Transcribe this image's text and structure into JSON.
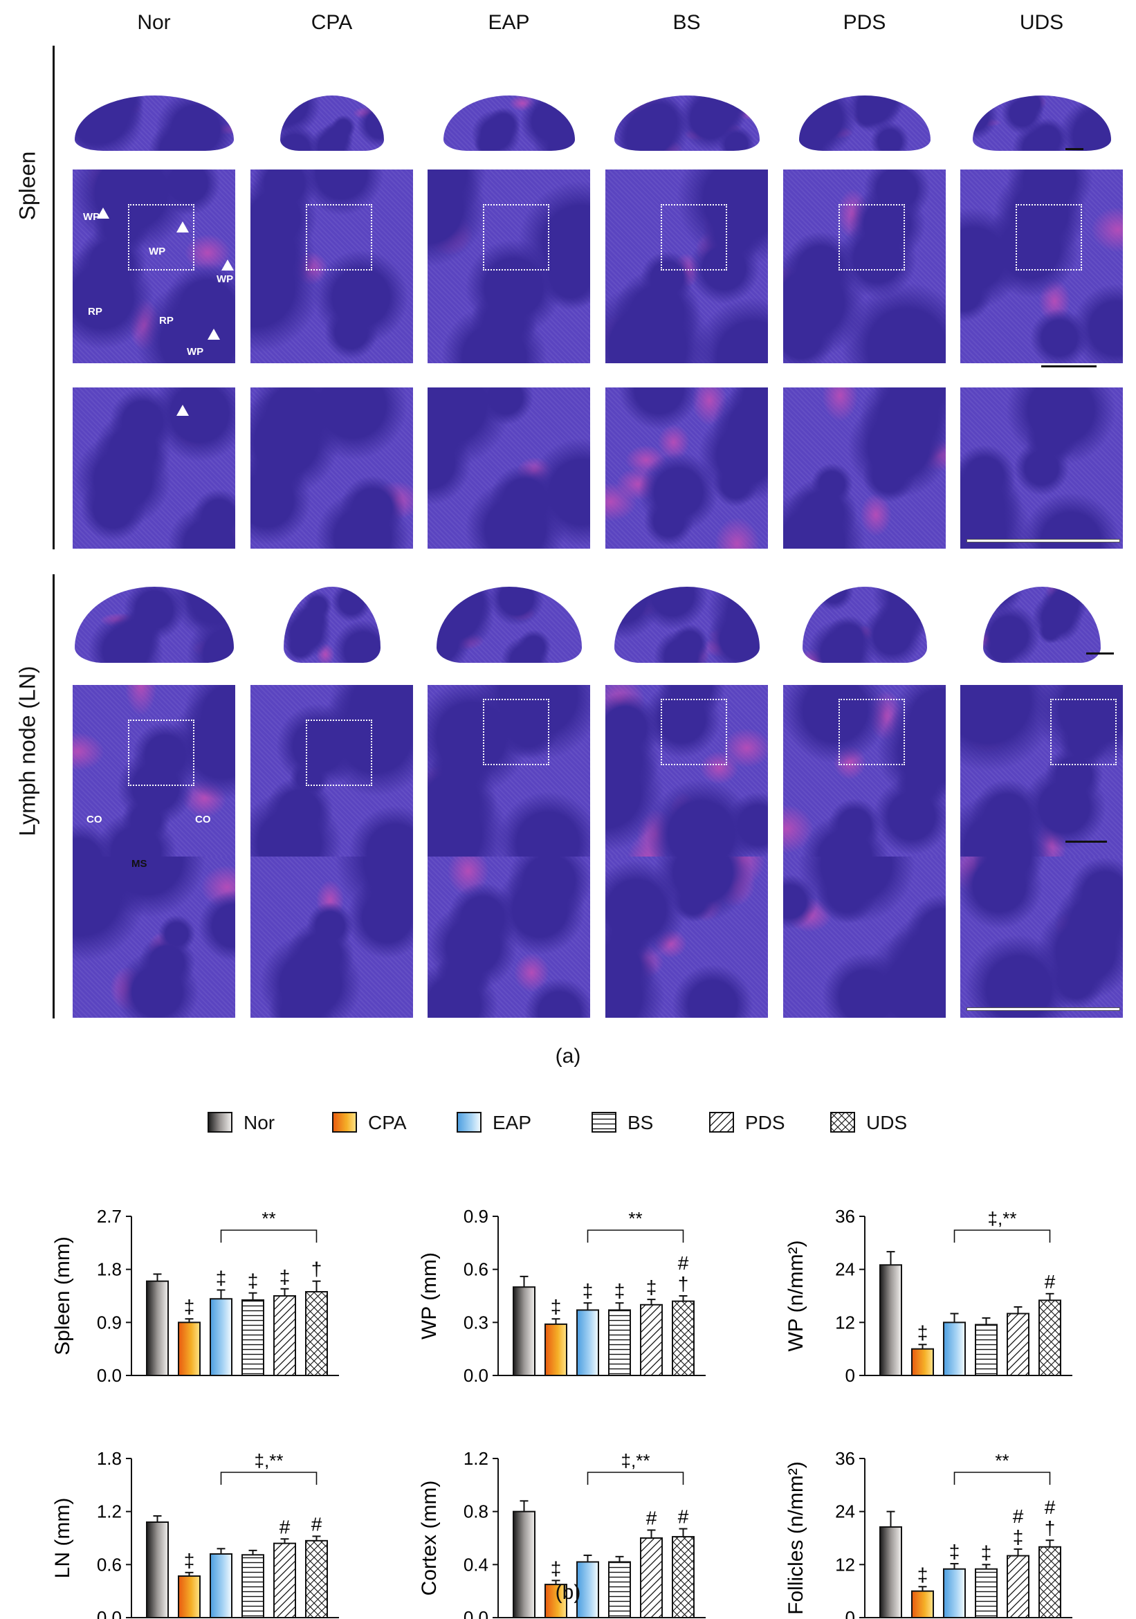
{
  "groups": [
    "Nor",
    "CPA",
    "EAP",
    "BS",
    "PDS",
    "UDS"
  ],
  "row_labels": {
    "spleen": "Spleen",
    "lymph": "Lymph node (LN)"
  },
  "annotations": {
    "wp": "WP",
    "rp": "RP",
    "co": "CO",
    "ms": "MS"
  },
  "panel_labels": {
    "a": "(a)",
    "b": "(b)"
  },
  "colors": {
    "tissue_dark": "#3a2a9a",
    "tissue_mid": "#5a44c0",
    "tissue_pink": "#b24db8",
    "nor_bar": "#6e6a68",
    "cpa_bar": "#f0a020",
    "eap_bar": "#8fc3ea"
  },
  "legend": [
    {
      "name": "Nor",
      "pattern": "nor"
    },
    {
      "name": "CPA",
      "pattern": "cpa"
    },
    {
      "name": "EAP",
      "pattern": "eap"
    },
    {
      "name": "BS",
      "pattern": "hlines"
    },
    {
      "name": "PDS",
      "pattern": "diag"
    },
    {
      "name": "UDS",
      "pattern": "cross"
    }
  ],
  "chart_data": [
    {
      "type": "bar",
      "ylabel": "Spleen (mm)",
      "ylim": [
        0,
        2.7
      ],
      "yticks": [
        "0.0",
        "0.9",
        "1.8",
        "2.7"
      ],
      "categories": [
        "Nor",
        "CPA",
        "EAP",
        "BS",
        "PDS",
        "UDS"
      ],
      "values": [
        1.6,
        0.9,
        1.3,
        1.28,
        1.35,
        1.42
      ],
      "errors": [
        0.12,
        0.06,
        0.15,
        0.12,
        0.12,
        0.18
      ],
      "marks": [
        "",
        "‡",
        "‡",
        "‡",
        "‡",
        "†"
      ],
      "bracket": {
        "from": 2,
        "to": 5,
        "label": "**"
      }
    },
    {
      "type": "bar",
      "ylabel": "WP (mm)",
      "ylim": [
        0,
        0.9
      ],
      "yticks": [
        "0.0",
        "0.3",
        "0.6",
        "0.9"
      ],
      "categories": [
        "Nor",
        "CPA",
        "EAP",
        "BS",
        "PDS",
        "UDS"
      ],
      "values": [
        0.5,
        0.29,
        0.37,
        0.37,
        0.4,
        0.42
      ],
      "errors": [
        0.06,
        0.03,
        0.04,
        0.04,
        0.03,
        0.03
      ],
      "marks": [
        "",
        "‡",
        "‡",
        "‡",
        "‡",
        "#\n†"
      ],
      "bracket": {
        "from": 2,
        "to": 5,
        "label": "**"
      }
    },
    {
      "type": "bar",
      "ylabel": "WP (n/mm²)",
      "ylim": [
        0,
        36
      ],
      "yticks": [
        "0",
        "12",
        "24",
        "36"
      ],
      "categories": [
        "Nor",
        "CPA",
        "EAP",
        "BS",
        "PDS",
        "UDS"
      ],
      "values": [
        25,
        6,
        12,
        11.5,
        14,
        17
      ],
      "errors": [
        3,
        1,
        2,
        1.5,
        1.5,
        1.5
      ],
      "marks": [
        "",
        "‡",
        "",
        "",
        "",
        "#"
      ],
      "bracket": {
        "from": 2,
        "to": 5,
        "label": "‡,**"
      }
    },
    {
      "type": "bar",
      "ylabel": "LN (mm)",
      "ylim": [
        0,
        1.8
      ],
      "yticks": [
        "0.0",
        "0.6",
        "1.2",
        "1.8"
      ],
      "categories": [
        "Nor",
        "CPA",
        "EAP",
        "BS",
        "PDS",
        "UDS"
      ],
      "values": [
        1.08,
        0.47,
        0.72,
        0.71,
        0.84,
        0.87
      ],
      "errors": [
        0.07,
        0.04,
        0.06,
        0.05,
        0.05,
        0.05
      ],
      "marks": [
        "",
        "‡",
        "",
        "",
        "#",
        "#"
      ],
      "bracket": {
        "from": 2,
        "to": 5,
        "label": "‡,**"
      }
    },
    {
      "type": "bar",
      "ylabel": "Cortex (mm)",
      "ylim": [
        0,
        1.2
      ],
      "yticks": [
        "0.0",
        "0.4",
        "0.8",
        "1.2"
      ],
      "categories": [
        "Nor",
        "CPA",
        "EAP",
        "BS",
        "PDS",
        "UDS"
      ],
      "values": [
        0.8,
        0.25,
        0.42,
        0.42,
        0.6,
        0.61
      ],
      "errors": [
        0.08,
        0.03,
        0.05,
        0.04,
        0.06,
        0.06
      ],
      "marks": [
        "",
        "‡",
        "",
        "",
        "#",
        "#"
      ],
      "bracket": {
        "from": 2,
        "to": 5,
        "label": "‡,**"
      }
    },
    {
      "type": "bar",
      "ylabel": "Follicles (n/mm²)",
      "ylim": [
        0,
        36
      ],
      "yticks": [
        "0",
        "12",
        "24",
        "36"
      ],
      "categories": [
        "Nor",
        "CPA",
        "EAP",
        "BS",
        "PDS",
        "UDS"
      ],
      "values": [
        20.5,
        6,
        11,
        11,
        14,
        16
      ],
      "errors": [
        3.5,
        1,
        1.2,
        1,
        1.5,
        1.5
      ],
      "marks": [
        "",
        "‡",
        "‡",
        "‡",
        "#\n‡",
        "#\n†"
      ],
      "bracket": {
        "from": 2,
        "to": 5,
        "label": "**"
      }
    }
  ]
}
